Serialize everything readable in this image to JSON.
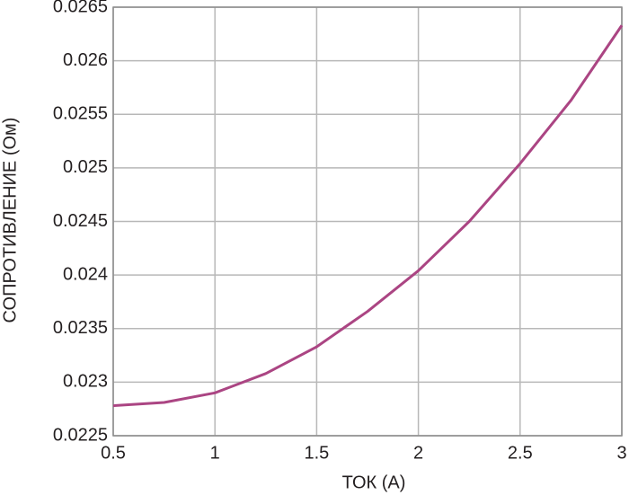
{
  "chart_data": {
    "type": "line",
    "xlabel": "ТОК (А)",
    "ylabel": "СОПРОТИВЛЕНИЕ (Ом)",
    "x": [
      0.5,
      0.75,
      1,
      1.25,
      1.5,
      1.75,
      2,
      2.25,
      2.5,
      2.75,
      3
    ],
    "series": [
      {
        "color": "#ab4583",
        "values": [
          0.02278,
          0.02281,
          0.0229,
          0.02308,
          0.02333,
          0.02366,
          0.02404,
          0.0245,
          0.02504,
          0.02563,
          0.02633
        ]
      }
    ],
    "xlim": [
      0.5,
      3
    ],
    "xticks": [
      0.5,
      1,
      1.5,
      2,
      2.5,
      3
    ],
    "ylim": [
      0.0225,
      0.0265
    ],
    "yticks": [
      0.0225,
      0.023,
      0.0235,
      0.024,
      0.0245,
      0.025,
      0.0255,
      0.026,
      0.0265
    ],
    "grid": true
  }
}
